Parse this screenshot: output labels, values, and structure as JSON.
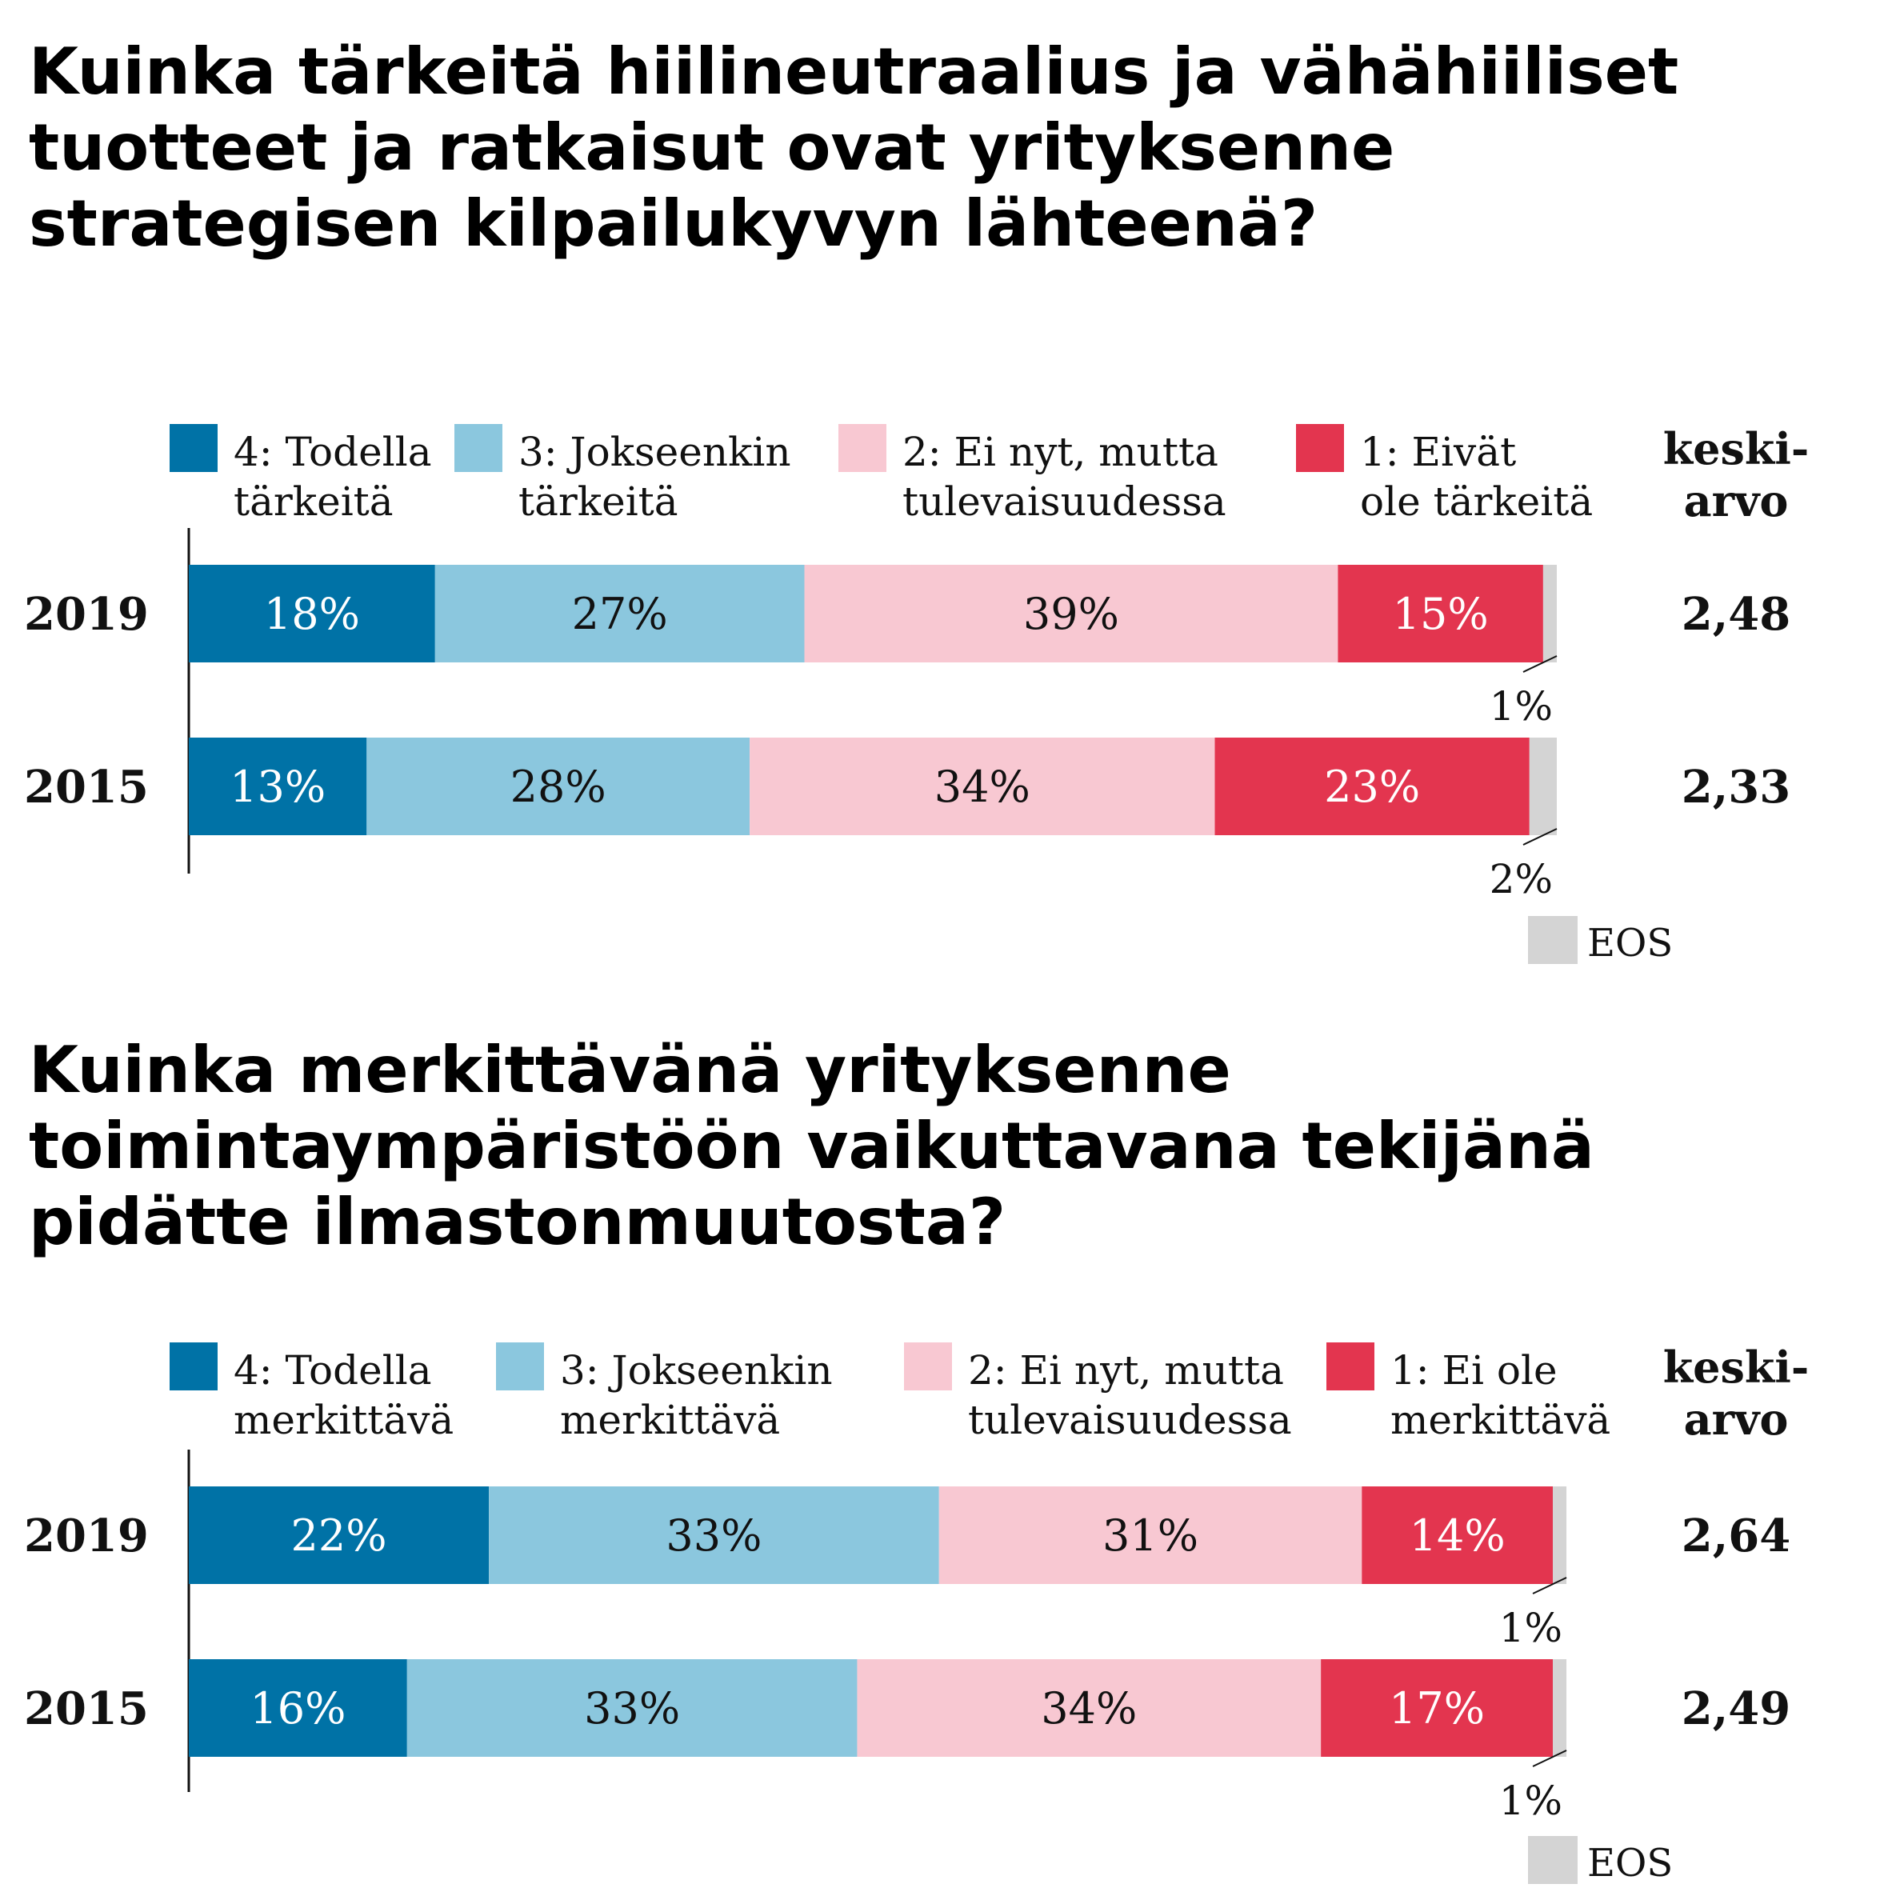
{
  "chart_data": [
    {
      "type": "bar",
      "orientation": "horizontal",
      "stacked": true,
      "title": "Kuinka tärkeitä hiilineutraalius ja vähähiiliset tuotteet ja ratkaisut ovat yrityksenne strategisen kilpailukyvyn lähteenä?",
      "categories": [
        "2019",
        "2015"
      ],
      "series": [
        {
          "name": "4: Todella tärkeitä",
          "legend_lines": [
            "4: Todella",
            "tärkeitä"
          ],
          "color": "#0072A6",
          "label_color": "#ffffff",
          "values": [
            18,
            13
          ],
          "labels": [
            "18%",
            "13%"
          ]
        },
        {
          "name": "3: Jokseenkin tärkeitä",
          "legend_lines": [
            "3: Jokseenkin",
            "tärkeitä"
          ],
          "color": "#8BC7DE",
          "label_color": "#111111",
          "values": [
            27,
            28
          ],
          "labels": [
            "27%",
            "28%"
          ]
        },
        {
          "name": "2: Ei nyt, mutta tulevaisuudessa",
          "legend_lines": [
            "2: Ei nyt, mutta",
            "tulevaisuudessa"
          ],
          "color": "#F8C8D2",
          "label_color": "#111111",
          "values": [
            39,
            34
          ],
          "labels": [
            "39%",
            "34%"
          ]
        },
        {
          "name": "1: Eivät ole tärkeitä",
          "legend_lines": [
            "1: Eivät",
            "ole tärkeitä"
          ],
          "color": "#E3354F",
          "label_color": "#ffffff",
          "values": [
            15,
            23
          ],
          "labels": [
            "15%",
            "23%"
          ]
        },
        {
          "name": "EOS",
          "color": "#D4D4D4",
          "values": [
            1,
            2
          ],
          "labels": [
            "1%",
            "2%"
          ]
        }
      ],
      "mean_header": [
        "keski-",
        "arvo"
      ],
      "means": [
        "2,48",
        "2,33"
      ],
      "eos_label": "EOS"
    },
    {
      "type": "bar",
      "orientation": "horizontal",
      "stacked": true,
      "title": "Kuinka merkittävänä yrityksenne toimintaympäristöön vaikuttavana tekijänä pidätte ilmastonmuutosta?",
      "categories": [
        "2019",
        "2015"
      ],
      "series": [
        {
          "name": "4: Todella merkittävä",
          "legend_lines": [
            "4: Todella",
            "merkittävä"
          ],
          "color": "#0072A6",
          "label_color": "#ffffff",
          "values": [
            22,
            16
          ],
          "labels": [
            "22%",
            "16%"
          ]
        },
        {
          "name": "3: Jokseenkin merkittävä",
          "legend_lines": [
            "3: Jokseenkin",
            "merkittävä"
          ],
          "color": "#8BC7DE",
          "label_color": "#111111",
          "values": [
            33,
            33
          ],
          "labels": [
            "33%",
            "33%"
          ]
        },
        {
          "name": "2: Ei nyt, mutta tulevaisuudessa",
          "legend_lines": [
            "2: Ei nyt, mutta",
            "tulevaisuudessa"
          ],
          "color": "#F8C8D2",
          "label_color": "#111111",
          "values": [
            31,
            34
          ],
          "labels": [
            "31%",
            "34%"
          ]
        },
        {
          "name": "1: Ei ole merkittävä",
          "legend_lines": [
            "1: Ei ole",
            "merkittävä"
          ],
          "color": "#E3354F",
          "label_color": "#ffffff",
          "values": [
            14,
            17
          ],
          "labels": [
            "14%",
            "17%"
          ]
        },
        {
          "name": "EOS",
          "color": "#D4D4D4",
          "values": [
            1,
            1
          ],
          "labels": [
            "1%",
            "1%"
          ]
        }
      ],
      "mean_header": [
        "keski-",
        "arvo"
      ],
      "means": [
        "2,64",
        "2,49"
      ],
      "eos_label": "EOS"
    }
  ]
}
